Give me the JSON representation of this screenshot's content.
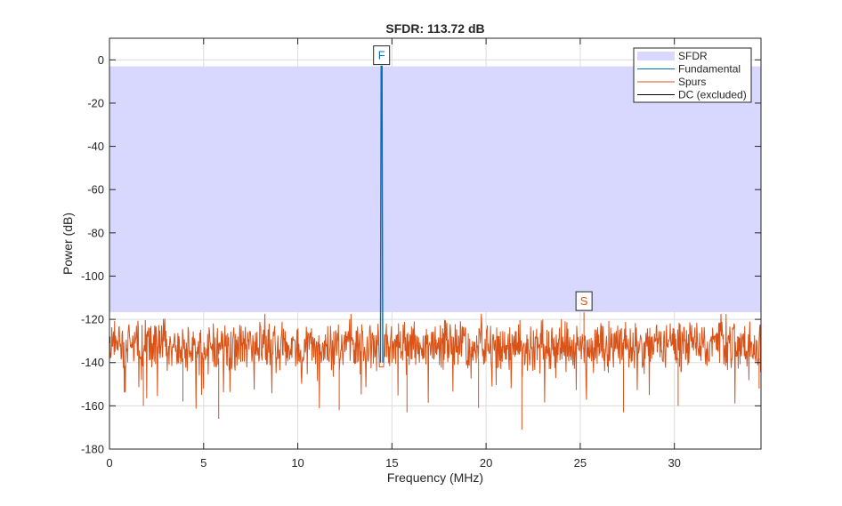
{
  "chart_data": {
    "type": "line",
    "title": "SFDR: 113.72 dB",
    "xlabel": "Frequency (MHz)",
    "ylabel": "Power (dB)",
    "xlim": [
      0,
      34.6
    ],
    "ylim": [
      -180,
      10
    ],
    "xticks": [
      0,
      5,
      10,
      15,
      20,
      25,
      30
    ],
    "yticks": [
      0,
      -20,
      -40,
      -60,
      -80,
      -100,
      -120,
      -140,
      -160,
      -180
    ],
    "grid": true,
    "legend_location": "top-right",
    "sfdr_region": {
      "label": "SFDR",
      "top_db": -3,
      "bottom_db": -116.7,
      "value_db": 113.72,
      "color": "#d8d8ff"
    },
    "fundamental": {
      "label": "Fundamental",
      "marker": "F",
      "frequency_mhz": 14.45,
      "power_db": -3,
      "color": "#0072bd"
    },
    "spur": {
      "label": "Spurs",
      "marker": "S",
      "frequency_mhz": 25.2,
      "power_db": -116.7,
      "color": "#d95319"
    },
    "dc": {
      "label": "DC (excluded)",
      "frequency_mhz": 0,
      "color": "#000000"
    },
    "noise_floor": {
      "mean_db": -132,
      "min_db": -172,
      "max_db": -116.7
    },
    "deep_dips": [
      {
        "x": 1.8,
        "y": -160
      },
      {
        "x": 3.9,
        "y": -158
      },
      {
        "x": 5.8,
        "y": -166
      },
      {
        "x": 12.2,
        "y": -162
      },
      {
        "x": 15.8,
        "y": -163
      },
      {
        "x": 19.6,
        "y": -161
      },
      {
        "x": 21.9,
        "y": -171
      },
      {
        "x": 27.3,
        "y": -163
      },
      {
        "x": 30.2,
        "y": -160
      },
      {
        "x": 34.5,
        "y": -152
      }
    ]
  }
}
